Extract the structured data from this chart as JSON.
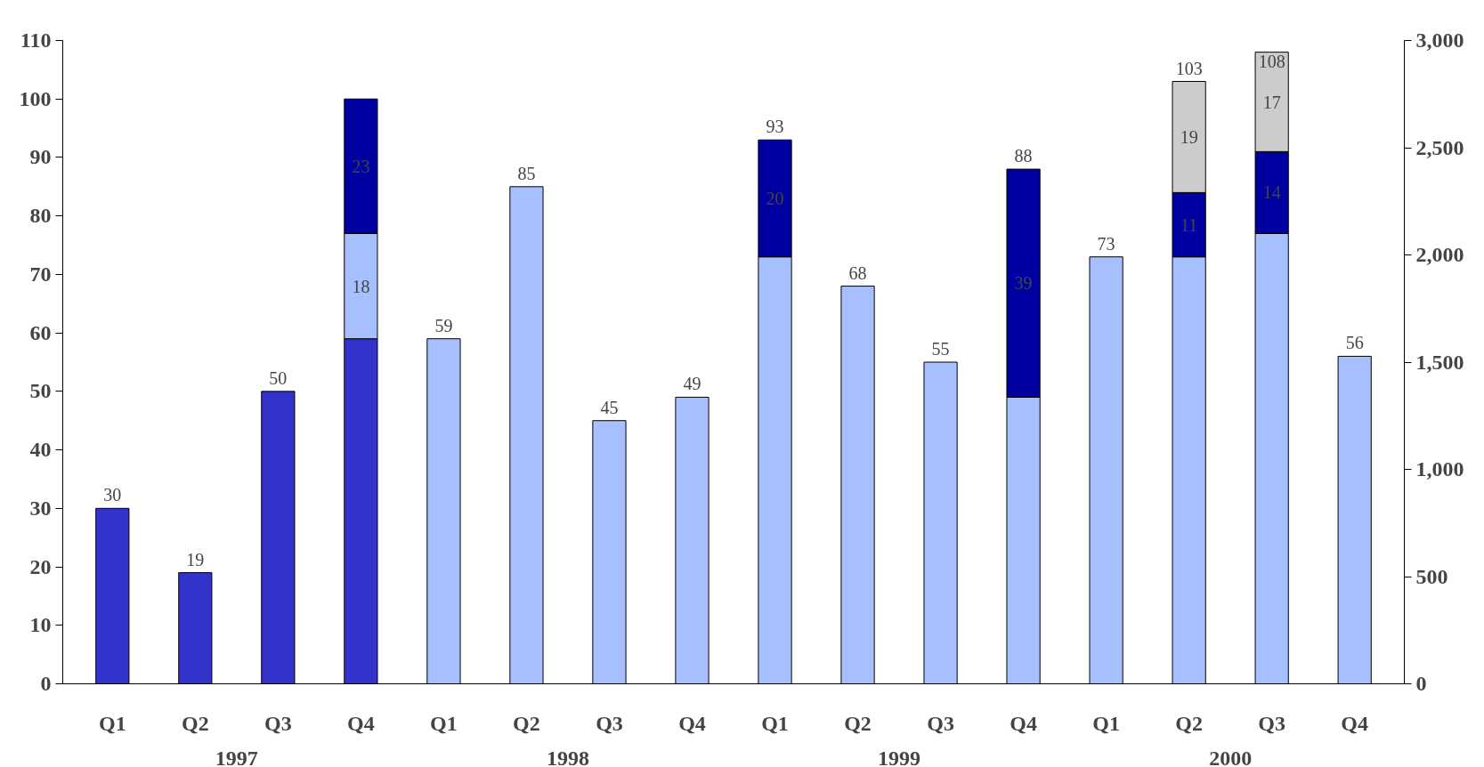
{
  "chart_data": {
    "type": "bar",
    "stacked": true,
    "categories": [
      "Q1",
      "Q2",
      "Q3",
      "Q4",
      "Q1",
      "Q2",
      "Q3",
      "Q4",
      "Q1",
      "Q2",
      "Q3",
      "Q4",
      "Q1",
      "Q2",
      "Q3",
      "Q4"
    ],
    "series": [
      {
        "colors": [
          "#3333cc",
          "#3333cc",
          "#3333cc",
          "#3333cc",
          "#a6c0ff",
          "#a6c0ff",
          "#a6c0ff",
          "#a6c0ff",
          "#a6c0ff",
          "#a6c0ff",
          "#a6c0ff",
          "#a6c0ff",
          "#a6c0ff",
          "#a6c0ff",
          "#a6c0ff",
          "#a6c0ff"
        ],
        "values": [
          30,
          19,
          50,
          59,
          59,
          85,
          45,
          49,
          73,
          68,
          55,
          49,
          73,
          73,
          77,
          56
        ]
      },
      {
        "colors": [
          null,
          null,
          null,
          "#a6c0ff",
          null,
          null,
          null,
          null,
          null,
          null,
          null,
          null,
          null,
          null,
          null,
          null
        ],
        "values": [
          null,
          null,
          null,
          18,
          null,
          null,
          null,
          null,
          null,
          null,
          null,
          null,
          null,
          null,
          null,
          null
        ],
        "value_labels": [
          null,
          null,
          null,
          "18",
          null,
          null,
          null,
          null,
          null,
          null,
          null,
          null,
          null,
          null,
          null,
          null
        ]
      },
      {
        "color": "#0000a0",
        "values": [
          null,
          null,
          null,
          23,
          null,
          null,
          null,
          null,
          20,
          null,
          null,
          39,
          null,
          11,
          14,
          null
        ],
        "value_labels": [
          null,
          null,
          null,
          "23",
          null,
          null,
          null,
          null,
          "20",
          null,
          null,
          "39",
          null,
          "11",
          "14",
          null
        ]
      },
      {
        "color": "#cccccc",
        "values": [
          null,
          null,
          null,
          null,
          null,
          null,
          null,
          null,
          null,
          null,
          null,
          null,
          null,
          19,
          17,
          null
        ],
        "value_labels": [
          null,
          null,
          null,
          null,
          null,
          null,
          null,
          null,
          null,
          null,
          null,
          null,
          null,
          "19",
          "17",
          null
        ]
      }
    ],
    "totals": [
      "30",
      "19",
      "50",
      null,
      "59",
      "85",
      "45",
      "49",
      "93",
      "68",
      "55",
      "88",
      "73",
      "103",
      "108",
      "56"
    ],
    "ylim": [
      0,
      110
    ],
    "yticks": [
      0,
      10,
      20,
      30,
      40,
      50,
      60,
      70,
      80,
      90,
      100,
      110
    ],
    "y2lim": [
      0,
      3000
    ],
    "y2ticks": [
      {
        "value": 0,
        "label": "0"
      },
      {
        "value": 500,
        "label": "500"
      },
      {
        "value": 1000,
        "label": "1,000"
      },
      {
        "value": 1500,
        "label": "1,500"
      },
      {
        "value": 2000,
        "label": "2,000"
      },
      {
        "value": 2500,
        "label": "2,500"
      },
      {
        "value": 3000,
        "label": "3,000"
      }
    ],
    "annotations": [
      "1997",
      "1998",
      "1999",
      "2000"
    ],
    "grid": false
  }
}
